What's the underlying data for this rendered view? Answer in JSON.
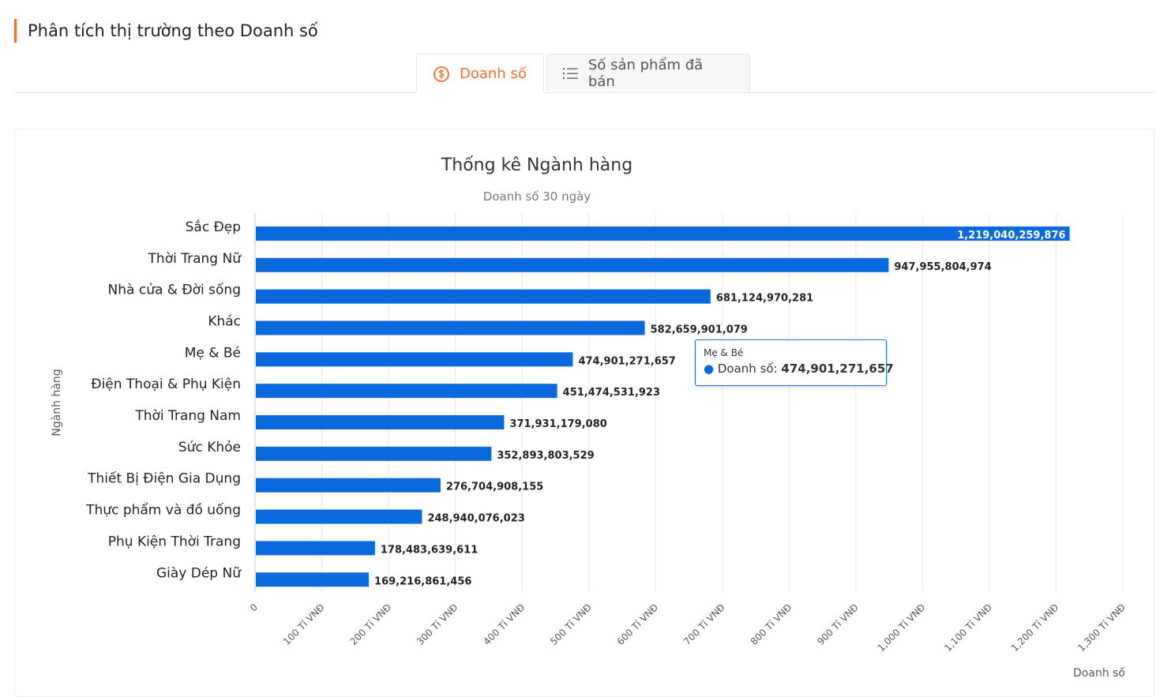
{
  "header": {
    "title": "Phân tích thị trường theo Doanh số"
  },
  "tabs": [
    {
      "label": "Doanh số",
      "icon": "dollar-circle-icon"
    },
    {
      "label": "Số sản phẩm đã bán",
      "icon": "list-icon"
    }
  ],
  "tooltip": {
    "category": "Mẹ & Bé",
    "series": "Doanh số",
    "value": "474,901,271,657"
  },
  "chart_data": {
    "type": "bar",
    "orientation": "horizontal",
    "title": "Thống kê Ngành hàng",
    "subtitle": "Doanh số 30 ngày",
    "xlabel": "Doanh số",
    "ylabel": "Ngành hàng",
    "bar_color": "#0b69de",
    "xlim": [
      0,
      1300000000000
    ],
    "xticks": [
      "0",
      "100 Tỉ VNĐ",
      "200 Tỉ VNĐ",
      "300 Tỉ VNĐ",
      "400 Tỉ VNĐ",
      "500 Tỉ VNĐ",
      "600 Tỉ VNĐ",
      "700 Tỉ VNĐ",
      "800 Tỉ VNĐ",
      "900 Tỉ VNĐ",
      "1,000 Tỉ VNĐ",
      "1,100 Tỉ VNĐ",
      "1,200 Tỉ VNĐ",
      "1,300 Tỉ VNĐ"
    ],
    "categories": [
      "Sắc Đẹp",
      "Thời Trang Nữ",
      "Nhà cửa & Đời sống",
      "Khác",
      "Mẹ & Bé",
      "Điện Thoại & Phụ Kiện",
      "Thời Trang Nam",
      "Sức Khỏe",
      "Thiết Bị Điện Gia Dụng",
      "Thực phẩm và đồ uống",
      "Phụ Kiện Thời Trang",
      "Giày Dép Nữ"
    ],
    "values": [
      1219040259876,
      947955804974,
      681124970281,
      582659901079,
      474901271657,
      451474531923,
      371931179080,
      352893803529,
      276704908155,
      248940076023,
      178483639611,
      169216861456
    ],
    "grid": true
  }
}
